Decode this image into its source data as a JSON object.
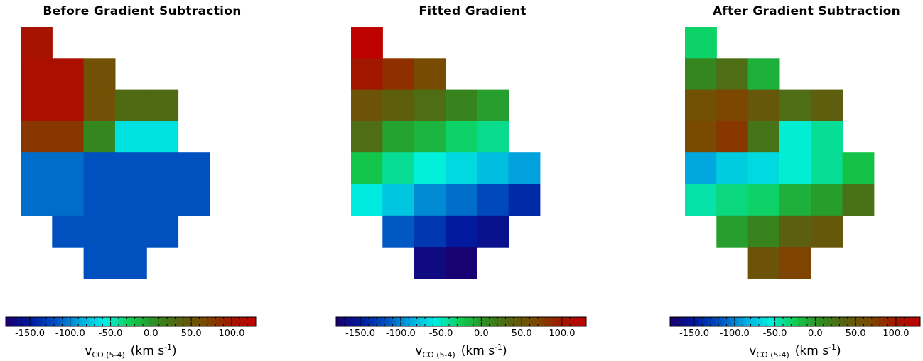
{
  "chart_data": {
    "type": "heatmap",
    "panels": [
      {
        "title": "Before Gradient Subtraction",
        "grid": [
          [
            105,
            null,
            null,
            null,
            null,
            null
          ],
          [
            110,
            110,
            58,
            null,
            null,
            null
          ],
          [
            110,
            110,
            58,
            30,
            30,
            null
          ],
          [
            80,
            80,
            10,
            -62,
            -62,
            null
          ],
          [
            -108,
            -108,
            -118,
            -118,
            -118,
            -118
          ],
          [
            -108,
            -108,
            -118,
            -118,
            -118,
            -118
          ],
          [
            null,
            -118,
            -118,
            -118,
            -118,
            null
          ],
          [
            null,
            null,
            -118,
            -118,
            null,
            null
          ]
        ]
      },
      {
        "title": "Fitted Gradient",
        "grid": [
          [
            128,
            null,
            null,
            null,
            null,
            null
          ],
          [
            100,
            85,
            65,
            null,
            null,
            null
          ],
          [
            55,
            40,
            28,
            12,
            -3,
            null
          ],
          [
            28,
            -5,
            -14,
            -30,
            -38,
            null
          ],
          [
            -22,
            -40,
            -55,
            -66,
            -78,
            -90
          ],
          [
            -58,
            -75,
            -98,
            -108,
            -122,
            -140
          ],
          [
            null,
            -115,
            -132,
            -150,
            -160,
            null
          ],
          [
            null,
            null,
            -168,
            -178,
            null,
            null
          ]
        ]
      },
      {
        "title": "After Gradient Subtraction",
        "grid": [
          [
            -30,
            null,
            null,
            null,
            null,
            null
          ],
          [
            10,
            28,
            -12,
            null,
            null,
            null
          ],
          [
            60,
            70,
            48,
            28,
            40,
            null
          ],
          [
            68,
            80,
            22,
            -53,
            -40,
            null
          ],
          [
            -88,
            -72,
            -66,
            -53,
            -40,
            -20
          ],
          [
            -44,
            -35,
            -30,
            -12,
            -2,
            25
          ],
          [
            null,
            -3,
            12,
            38,
            48,
            null
          ],
          [
            null,
            null,
            55,
            72,
            null,
            null
          ]
        ]
      }
    ],
    "colorbar": {
      "range": [
        -180,
        130
      ],
      "ticks": [
        "-150.0",
        "-100.0",
        "-50.0",
        "0.0",
        "50.0",
        "100.0"
      ],
      "tick_values": [
        -150,
        -100,
        -50,
        0,
        50,
        100
      ],
      "label_main": "v",
      "label_sub": "CO (5-4)",
      "label_unit_pre": "(km s",
      "label_unit_exp": "-1",
      "label_unit_post": ")",
      "colormap": [
        "#1a006e",
        "#001a9e",
        "#0050c0",
        "#00aadf",
        "#00f0e0",
        "#10cc50",
        "#2f8c20",
        "#5a6010",
        "#7a4a00",
        "#a01800",
        "#c00000"
      ]
    }
  }
}
